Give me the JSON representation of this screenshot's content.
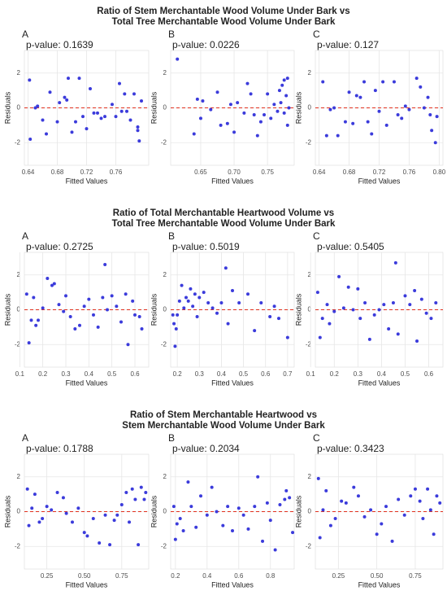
{
  "chart_data": [
    {
      "type": "scatter",
      "title": [
        "Ratio of Stem Merchantable Wood Volume Under Bark vs",
        "Total Tree Merchantable Wood Volume Under Bark"
      ],
      "color": "#3b3bdb",
      "grid": true,
      "panels": [
        {
          "label": "A",
          "subtitle": "p-value: 0.1639",
          "xlabel": "Fitted Values",
          "ylabel": "Residuals",
          "xlim": [
            0.635,
            0.805
          ],
          "ylim": [
            -3.3,
            3.3
          ],
          "xticks": [
            0.64,
            0.68,
            0.72,
            0.76
          ],
          "yticks": [
            -2,
            0,
            2
          ],
          "x": [
            0.642,
            0.643,
            0.65,
            0.653,
            0.66,
            0.665,
            0.67,
            0.68,
            0.683,
            0.69,
            0.693,
            0.695,
            0.7,
            0.705,
            0.71,
            0.715,
            0.72,
            0.725,
            0.73,
            0.735,
            0.74,
            0.745,
            0.755,
            0.76,
            0.765,
            0.768,
            0.772,
            0.775,
            0.78,
            0.785,
            0.79,
            0.79,
            0.792,
            0.795
          ],
          "y": [
            1.6,
            -1.8,
            0.0,
            0.1,
            -0.7,
            -1.5,
            0.9,
            -0.8,
            0.3,
            0.6,
            0.45,
            1.7,
            -1.4,
            -0.8,
            1.7,
            -0.5,
            -1.2,
            1.1,
            -0.3,
            -0.3,
            -0.6,
            -0.5,
            0.2,
            -0.5,
            1.4,
            -0.2,
            0.8,
            -0.2,
            -0.7,
            0.8,
            -1.1,
            -1.3,
            -1.9,
            0.4
          ]
        },
        {
          "label": "B",
          "subtitle": "p-value: 0.0226",
          "xlabel": "Fitted Values",
          "ylabel": "Residuals",
          "xlim": [
            0.605,
            0.79
          ],
          "ylim": [
            -3.3,
            3.3
          ],
          "xticks": [
            0.65,
            {
              "value": 0.7,
              "label": "0.70"
            },
            0.75
          ],
          "yticks": [
            -2,
            0,
            2
          ],
          "x": [
            0.615,
            0.64,
            0.645,
            0.65,
            0.653,
            0.665,
            0.675,
            0.68,
            0.69,
            0.695,
            0.7,
            0.705,
            0.715,
            0.72,
            0.725,
            0.73,
            0.735,
            0.74,
            0.745,
            0.75,
            0.755,
            0.76,
            0.765,
            0.768,
            0.77,
            0.772,
            0.775,
            0.775,
            0.778,
            0.78,
            0.78,
            0.782
          ],
          "y": [
            2.8,
            -1.5,
            0.5,
            -0.6,
            0.4,
            -0.1,
            0.9,
            -1.0,
            -0.9,
            0.2,
            -1.4,
            0.3,
            -0.3,
            1.4,
            0.8,
            -0.4,
            -1.6,
            -0.8,
            -0.4,
            0.8,
            -0.6,
            0.2,
            -0.2,
            1.0,
            0.3,
            1.3,
            1.6,
            -0.3,
            0.7,
            -1.0,
            1.7,
            0.0
          ]
        },
        {
          "label": "C",
          "subtitle": "p-value: 0.127",
          "xlabel": "Fitted Values",
          "ylabel": "Residuals",
          "xlim": [
            0.635,
            0.805
          ],
          "ylim": [
            -3.3,
            3.3
          ],
          "xticks": [
            0.64,
            0.68,
            0.72,
            0.76,
            {
              "value": 0.8,
              "label": "0.80"
            }
          ],
          "yticks": [
            -2,
            0,
            2
          ],
          "x": [
            0.645,
            0.65,
            0.655,
            0.66,
            0.665,
            0.675,
            0.68,
            0.685,
            0.69,
            0.695,
            0.7,
            0.705,
            0.71,
            0.715,
            0.72,
            0.725,
            0.73,
            0.74,
            0.745,
            0.75,
            0.755,
            0.76,
            0.77,
            0.775,
            0.78,
            0.785,
            0.788,
            0.79,
            0.795,
            0.797
          ],
          "y": [
            1.5,
            -1.6,
            -0.1,
            0.0,
            -1.6,
            -0.8,
            0.9,
            -0.9,
            0.7,
            0.6,
            1.5,
            -0.8,
            -1.5,
            1.0,
            -0.2,
            1.5,
            -1.0,
            1.5,
            -0.4,
            -0.6,
            0.1,
            -0.1,
            1.7,
            1.2,
            0.0,
            0.6,
            -0.4,
            -1.3,
            -2.0,
            -0.5
          ]
        }
      ]
    },
    {
      "type": "scatter",
      "title": [
        "Ratio of Total Merchantable Heartwood Volume vs",
        "Total Tree Merchantable Wood Volume Under Bark"
      ],
      "color": "#3b3bdb",
      "grid": true,
      "panels": [
        {
          "label": "A",
          "subtitle": "p-value: 0.2725",
          "xlabel": "Fitted Values",
          "ylabel": "Residuals",
          "xlim": [
            0.12,
            0.66
          ],
          "ylim": [
            -3.3,
            3.3
          ],
          "xticks": [
            0.1,
            0.2,
            0.3,
            0.4,
            0.5,
            0.6
          ],
          "yticks": [
            -2,
            0,
            2
          ],
          "x": [
            0.13,
            0.14,
            0.15,
            0.16,
            0.17,
            0.18,
            0.2,
            0.22,
            0.24,
            0.25,
            0.27,
            0.29,
            0.3,
            0.32,
            0.34,
            0.36,
            0.38,
            0.4,
            0.42,
            0.44,
            0.46,
            0.47,
            0.48,
            0.5,
            0.52,
            0.54,
            0.56,
            0.57,
            0.59,
            0.6,
            0.62,
            0.63
          ],
          "y": [
            0.9,
            -1.9,
            -0.6,
            0.7,
            -0.9,
            -0.6,
            0.1,
            1.8,
            1.4,
            1.5,
            0.3,
            -0.1,
            0.8,
            -0.4,
            -1.1,
            -0.9,
            0.2,
            0.6,
            -0.3,
            -1.0,
            0.7,
            2.6,
            0.0,
            0.8,
            0.2,
            -0.7,
            0.9,
            -2.0,
            0.5,
            -0.3,
            -0.4,
            -1.1
          ]
        },
        {
          "label": "B",
          "subtitle": "p-value: 0.5019",
          "xlabel": "Fitted Values",
          "ylabel": "Residuals",
          "xlim": [
            0.17,
            0.73
          ],
          "ylim": [
            -3.3,
            3.3
          ],
          "xticks": [
            0.2,
            0.3,
            0.4,
            0.5,
            0.6,
            0.7
          ],
          "yticks": [
            -2,
            0,
            2
          ],
          "x": [
            0.18,
            0.185,
            0.19,
            0.195,
            0.2,
            0.21,
            0.22,
            0.23,
            0.24,
            0.25,
            0.26,
            0.27,
            0.28,
            0.29,
            0.3,
            0.32,
            0.34,
            0.36,
            0.38,
            0.4,
            0.42,
            0.43,
            0.45,
            0.48,
            0.52,
            0.55,
            0.58,
            0.62,
            0.64,
            0.66,
            0.7
          ],
          "y": [
            -0.3,
            -0.8,
            -2.1,
            -1.1,
            -0.3,
            0.5,
            1.4,
            0.1,
            0.7,
            0.5,
            1.2,
            0.2,
            0.9,
            -0.4,
            0.7,
            1.0,
            0.4,
            0.1,
            -0.2,
            0.4,
            2.4,
            -0.8,
            1.1,
            0.4,
            0.9,
            -1.2,
            0.4,
            -0.4,
            0.2,
            -0.5,
            -1.6
          ]
        },
        {
          "label": "C",
          "subtitle": "p-value: 0.5405",
          "xlabel": "Fitted Values",
          "ylabel": "Residuals",
          "xlim": [
            0.12,
            0.66
          ],
          "ylim": [
            -3.3,
            3.3
          ],
          "xticks": [
            0.1,
            0.2,
            0.3,
            0.4,
            0.5,
            0.6
          ],
          "yticks": [
            -2,
            0,
            2
          ],
          "x": [
            0.13,
            0.14,
            0.15,
            0.17,
            0.18,
            0.2,
            0.22,
            0.24,
            0.26,
            0.28,
            0.3,
            0.31,
            0.33,
            0.35,
            0.37,
            0.39,
            0.41,
            0.43,
            0.45,
            0.46,
            0.47,
            0.5,
            0.52,
            0.54,
            0.55,
            0.57,
            0.59,
            0.61,
            0.63
          ],
          "y": [
            1.0,
            -1.6,
            -0.5,
            0.3,
            -0.8,
            -0.1,
            1.9,
            0.1,
            1.3,
            0.0,
            1.2,
            -0.5,
            0.4,
            -1.7,
            -0.3,
            0.0,
            0.3,
            -1.1,
            0.4,
            2.7,
            -1.4,
            0.8,
            0.3,
            1.1,
            -1.8,
            0.6,
            -0.2,
            -0.5,
            0.4
          ]
        }
      ]
    },
    {
      "type": "scatter",
      "title": [
        "Ratio of Stem Merchantable Heartwood vs",
        "Stem Merchantable Wood Volume Under Bark"
      ],
      "color": "#3b3bdb",
      "grid": true,
      "panels": [
        {
          "label": "A",
          "subtitle": "p-value: 0.1788",
          "xlabel": "Fitted Values",
          "ylabel": "Residuals",
          "xlim": [
            0.1,
            0.93
          ],
          "ylim": [
            -3.3,
            3.3
          ],
          "xticks": [
            0.25,
            {
              "value": 0.5,
              "label": "0.50"
            },
            0.75
          ],
          "yticks": [
            -2,
            0,
            2
          ],
          "x": [
            0.12,
            0.13,
            0.15,
            0.17,
            0.2,
            0.22,
            0.25,
            0.28,
            0.32,
            0.36,
            0.38,
            0.42,
            0.46,
            0.5,
            0.52,
            0.56,
            0.6,
            0.64,
            0.67,
            0.7,
            0.72,
            0.75,
            0.78,
            0.8,
            0.82,
            0.84,
            0.86,
            0.88,
            0.9,
            0.91
          ],
          "y": [
            1.3,
            -0.8,
            0.2,
            1.0,
            -0.6,
            -0.4,
            0.3,
            0.1,
            1.1,
            0.8,
            -0.1,
            -0.6,
            0.2,
            -1.2,
            -1.4,
            -0.4,
            -1.8,
            -0.2,
            -1.9,
            -0.5,
            -0.2,
            0.4,
            1.1,
            -0.6,
            1.3,
            0.7,
            -1.9,
            1.4,
            0.7,
            1.1
          ]
        },
        {
          "label": "B",
          "subtitle": "p-value: 0.2034",
          "xlabel": "Fitted Values",
          "ylabel": "Residuals",
          "xlim": [
            0.17,
            0.95
          ],
          "ylim": [
            -3.3,
            3.3
          ],
          "xticks": [
            0.2,
            0.4,
            0.6,
            0.8
          ],
          "yticks": [
            -2,
            0,
            2
          ],
          "x": [
            0.19,
            0.2,
            0.21,
            0.23,
            0.25,
            0.28,
            0.3,
            0.33,
            0.36,
            0.4,
            0.43,
            0.46,
            0.5,
            0.53,
            0.56,
            0.6,
            0.63,
            0.66,
            0.7,
            0.72,
            0.75,
            0.78,
            0.8,
            0.83,
            0.86,
            0.89,
            0.9,
            0.92,
            0.94
          ],
          "y": [
            0.3,
            -1.6,
            -0.7,
            -0.4,
            -1.1,
            1.7,
            0.3,
            -0.9,
            0.9,
            -0.2,
            1.4,
            0.0,
            -0.8,
            0.3,
            -1.1,
            0.2,
            -0.2,
            -1.0,
            0.3,
            2.0,
            -1.7,
            0.5,
            -0.5,
            -2.2,
            0.4,
            0.7,
            1.2,
            0.8,
            -1.2
          ]
        },
        {
          "label": "C",
          "subtitle": "p-value: 0.3423",
          "xlabel": "Fitted Values",
          "ylabel": "Residuals",
          "xlim": [
            0.1,
            0.93
          ],
          "ylim": [
            -3.3,
            3.3
          ],
          "xticks": [
            0.25,
            {
              "value": 0.5,
              "label": "0.50"
            },
            0.75
          ],
          "yticks": [
            -2,
            0,
            2
          ],
          "x": [
            0.12,
            0.13,
            0.15,
            0.17,
            0.2,
            0.23,
            0.27,
            0.3,
            0.35,
            0.38,
            0.42,
            0.46,
            0.5,
            0.53,
            0.56,
            0.6,
            0.64,
            0.68,
            0.72,
            0.75,
            0.78,
            0.8,
            0.83,
            0.85,
            0.87,
            0.89,
            0.91
          ],
          "y": [
            1.9,
            -1.5,
            0.1,
            1.2,
            -0.8,
            -0.4,
            0.6,
            0.5,
            1.4,
            0.9,
            -0.3,
            0.1,
            -1.3,
            -0.7,
            0.3,
            -1.7,
            0.7,
            -0.2,
            0.9,
            1.3,
            0.6,
            -0.4,
            1.3,
            0.1,
            -1.3,
            0.9,
            0.5
          ]
        }
      ]
    }
  ]
}
